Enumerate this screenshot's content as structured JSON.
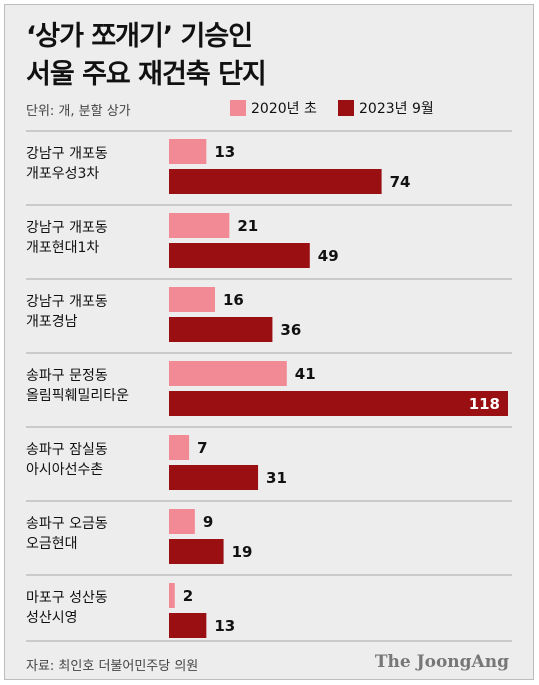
{
  "title_line1": "‘상가 쪼개기’ 기승인",
  "title_line2": "서울 주요 재건축 단지",
  "unit_note": "단위: 개, 분할 상가",
  "source": "자료: 최인호 더불어민주당 의원",
  "logo": "The JoongAng",
  "colors": {
    "s2020": "#f28a95",
    "s2023": "#990f12",
    "bg": "#ededed",
    "divider": "#a7a7a7"
  },
  "chart_data": {
    "type": "bar",
    "orientation": "horizontal",
    "categories": [
      [
        "강남구 개포동",
        "개포우성3차"
      ],
      [
        "강남구 개포동",
        "개포현대1차"
      ],
      [
        "강남구 개포동",
        "개포경남"
      ],
      [
        "송파구 문정동",
        "올림픽훼밀리타운"
      ],
      [
        "송파구 잠실동",
        "아시아선수촌"
      ],
      [
        "송파구 오금동",
        "오금현대"
      ],
      [
        "마포구 성산동",
        "성산시영"
      ]
    ],
    "series": [
      {
        "name": "2020년 초",
        "values": [
          13,
          21,
          16,
          41,
          7,
          9,
          2
        ]
      },
      {
        "name": "2023년 9월",
        "values": [
          74,
          49,
          36,
          118,
          31,
          19,
          13
        ]
      }
    ],
    "xlim": [
      0,
      118
    ],
    "legend": "top",
    "grid": false
  }
}
